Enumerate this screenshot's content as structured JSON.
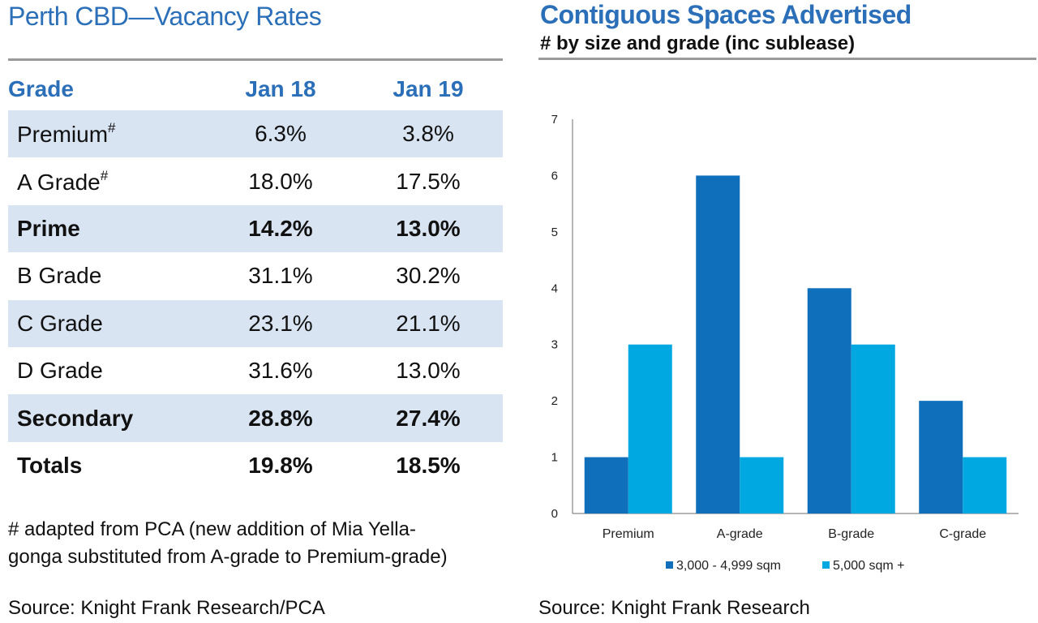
{
  "left": {
    "title": "Perth CBD—Vacancy Rates",
    "headers": {
      "grade": "Grade",
      "jan18": "Jan 18",
      "jan19": "Jan 19"
    },
    "rows": [
      {
        "grade": "Premium",
        "mark": "#",
        "jan18": "6.3%",
        "jan19": "3.8%"
      },
      {
        "grade": "A Grade",
        "mark": "#",
        "jan18": "18.0%",
        "jan19": "17.5%"
      },
      {
        "grade": "Prime",
        "mark": "",
        "jan18": "14.2%",
        "jan19": "13.0%"
      },
      {
        "grade": "B Grade",
        "mark": "",
        "jan18": "31.1%",
        "jan19": "30.2%"
      },
      {
        "grade": "C Grade",
        "mark": "",
        "jan18": "23.1%",
        "jan19": "21.1%"
      },
      {
        "grade": "D Grade",
        "mark": "",
        "jan18": "31.6%",
        "jan19": "13.0%"
      },
      {
        "grade": "Secondary",
        "mark": "",
        "jan18": "28.8%",
        "jan19": "27.4%"
      },
      {
        "grade": "Totals",
        "mark": "",
        "jan18": "19.8%",
        "jan19": "18.5%"
      }
    ],
    "footnote_line1": "#  adapted from PCA (new addition of Mia Yella-",
    "footnote_line2": "gonga substituted from A-grade to Premium-grade)",
    "source_label": "Source:",
    "source_text": "Knight Frank Research/PCA"
  },
  "right": {
    "title": "Contiguous Spaces Advertised",
    "subtitle": "# by size and grade (inc sublease)",
    "source_label": "Source:",
    "source_text": "Knight Frank Research"
  },
  "colors": {
    "accent": "#2b6fb8",
    "row_shade": "#d9e4f2",
    "series1": "#0f6fba",
    "series2": "#00a8e2",
    "rule": "#9a9a9a"
  },
  "chart_data": {
    "type": "bar",
    "title": "Contiguous Spaces Advertised",
    "subtitle": "# by size and grade (inc sublease)",
    "categories": [
      "Premium",
      "A-grade",
      "B-grade",
      "C-grade"
    ],
    "series": [
      {
        "name": "3,000 - 4,999 sqm",
        "values": [
          1,
          6,
          4,
          2
        ]
      },
      {
        "name": "5,000 sqm +",
        "values": [
          3,
          1,
          3,
          1
        ]
      }
    ],
    "ylim": [
      0,
      7
    ],
    "yticks": [
      0,
      1,
      2,
      3,
      4,
      5,
      6,
      7
    ],
    "grid": false,
    "legend": "bottom"
  }
}
